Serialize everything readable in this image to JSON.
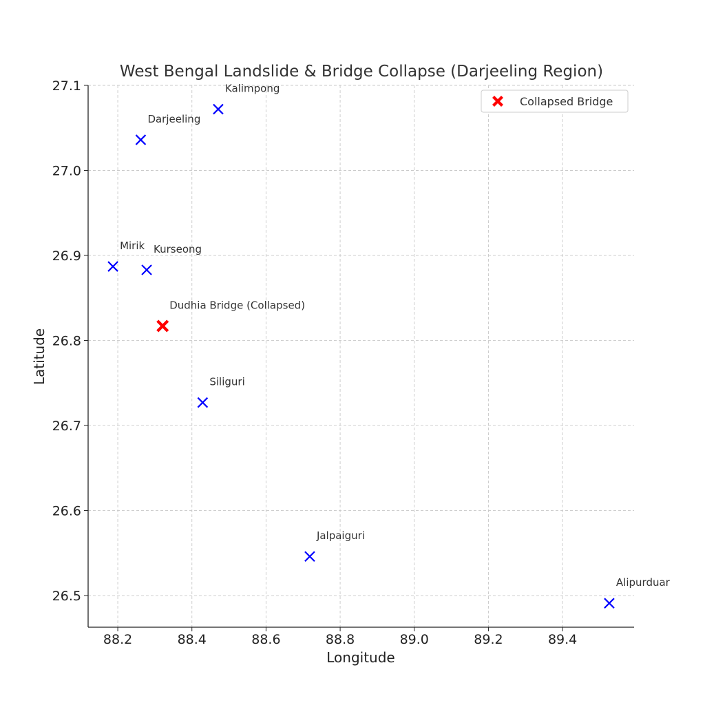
{
  "chart_data": {
    "type": "scatter",
    "title": "West Bengal Landslide & Bridge Collapse (Darjeeling Region)",
    "xlabel": "Longitude",
    "ylabel": "Latitude",
    "xlim": [
      88.12,
      89.593
    ],
    "ylim": [
      26.4628,
      27.1
    ],
    "xticks": [
      "88.2",
      "88.4",
      "88.6",
      "88.8",
      "89.0",
      "89.2",
      "89.4"
    ],
    "yticks": [
      "26.5",
      "26.6",
      "26.7",
      "26.8",
      "26.9",
      "27.0",
      "27.1"
    ],
    "grid": true,
    "legend": {
      "position": "top-right",
      "entries": [
        "Collapsed Bridge"
      ]
    },
    "colors": {
      "town": "#0000ff",
      "bridge": "#ff0000"
    },
    "points": [
      {
        "name": "Darjeeling",
        "x": 88.262,
        "y": 27.036,
        "kind": "town"
      },
      {
        "name": "Kalimpong",
        "x": 88.471,
        "y": 27.072,
        "kind": "town"
      },
      {
        "name": "Mirik",
        "x": 88.187,
        "y": 26.887,
        "kind": "town"
      },
      {
        "name": "Kurseong",
        "x": 88.278,
        "y": 26.883,
        "kind": "town"
      },
      {
        "name": "Siliguri",
        "x": 88.429,
        "y": 26.727,
        "kind": "town"
      },
      {
        "name": "Jalpaiguri",
        "x": 88.718,
        "y": 26.546,
        "kind": "town"
      },
      {
        "name": "Alipurduar",
        "x": 89.526,
        "y": 26.491,
        "kind": "town"
      },
      {
        "name": "Dudhia Bridge (Collapsed)",
        "x": 88.321,
        "y": 26.817,
        "kind": "bridge"
      }
    ]
  }
}
